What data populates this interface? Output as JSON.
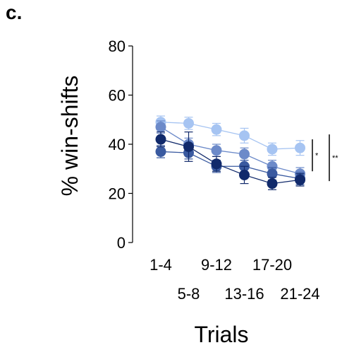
{
  "panel_label": "c.",
  "chart_data": {
    "type": "line",
    "title": "",
    "xlabel": "Trials",
    "ylabel": "% win-shifts",
    "categories": [
      "1-4",
      "5-8",
      "9-12",
      "13-16",
      "17-20",
      "21-24"
    ],
    "ylim": [
      0,
      80
    ],
    "yticks": [
      0,
      20,
      40,
      60,
      80
    ],
    "grid": false,
    "legend": "none",
    "series": [
      {
        "color": "#a6c4f2",
        "values": [
          49,
          48.5,
          46,
          43.5,
          38,
          38.5
        ],
        "errors": [
          2.5,
          2.5,
          2.5,
          3,
          2.5,
          3
        ]
      },
      {
        "color": "#6c8ac9",
        "values": [
          47,
          40,
          37.5,
          36,
          31,
          28
        ],
        "errors": [
          2.5,
          2.5,
          2.5,
          2.5,
          2.5,
          2.5
        ]
      },
      {
        "color": "#3a5aa0",
        "values": [
          37,
          36.5,
          31,
          31,
          28,
          26
        ],
        "errors": [
          2.5,
          2.5,
          2.5,
          2.5,
          2.5,
          2.5
        ]
      },
      {
        "color": "#112a6b",
        "values": [
          42,
          39,
          32,
          27.5,
          24,
          25.5
        ],
        "errors": [
          3,
          6,
          3,
          3.5,
          2.5,
          2.5
        ]
      }
    ],
    "significance": [
      {
        "label": "*",
        "from": 29,
        "to": 42
      },
      {
        "label": "**",
        "from": 25,
        "to": 44
      }
    ]
  }
}
